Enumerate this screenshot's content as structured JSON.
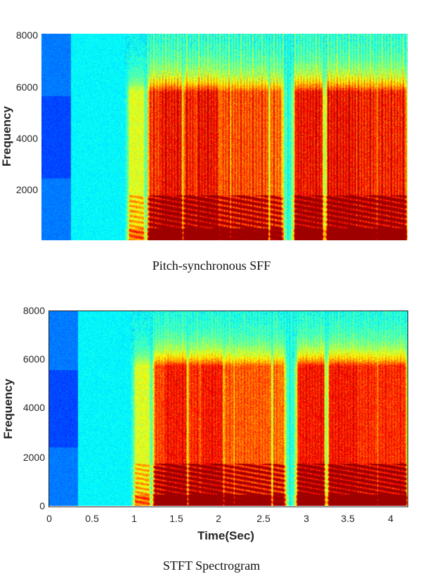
{
  "figure": {
    "top_panel": {
      "ylabel": "Frequency",
      "yticks": [
        "8000",
        "6000",
        "4000",
        "2000"
      ],
      "caption": "Pitch-synchronous SFF"
    },
    "bottom_panel": {
      "ylabel": "Frequency",
      "yticks": [
        "8000",
        "6000",
        "4000",
        "2000",
        "0"
      ],
      "xticks": [
        "0",
        "0.5",
        "1",
        "1.5",
        "2",
        "2.5",
        "3",
        "3.5",
        "4"
      ],
      "xlabel": "Time(Sec)",
      "caption": "STFT Spectrogram"
    }
  },
  "chart_data": [
    {
      "type": "heatmap",
      "title": "Pitch-synchronous SFF",
      "xlabel": "",
      "ylabel": "Frequency",
      "ylim": [
        0,
        8000
      ],
      "yticks": [
        2000,
        4000,
        6000,
        8000
      ],
      "colormap": "jet",
      "xlim": [
        0,
        4.25
      ]
    },
    {
      "type": "heatmap",
      "title": "STFT Spectrogram",
      "xlabel": "Time(Sec)",
      "ylabel": "Frequency",
      "ylim": [
        0,
        8000
      ],
      "yticks": [
        0,
        2000,
        4000,
        6000,
        8000
      ],
      "xlim": [
        0,
        4.25
      ],
      "xticks": [
        0,
        0.5,
        1,
        1.5,
        2,
        2.5,
        3,
        3.5,
        4
      ],
      "colormap": "jet"
    }
  ]
}
